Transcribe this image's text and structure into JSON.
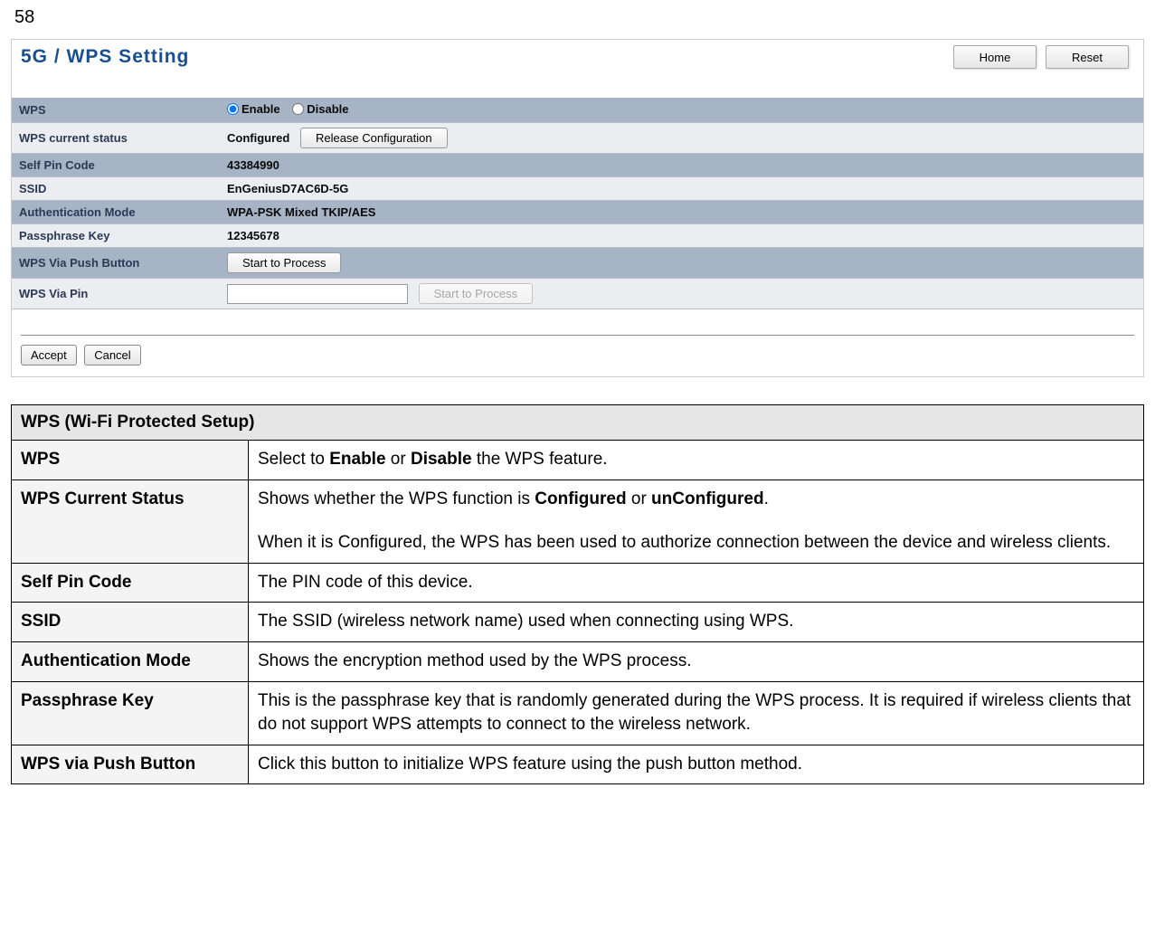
{
  "pageNumber": "58",
  "panel": {
    "title": "5G / WPS Setting",
    "buttons": {
      "home": "Home",
      "reset": "Reset"
    },
    "rows": {
      "wps_label": "WPS",
      "wps_enable": "Enable",
      "wps_disable": "Disable",
      "status_label": "WPS current status",
      "status_value": "Configured",
      "status_btn": "Release Configuration",
      "selfpin_label": "Self Pin Code",
      "selfpin_value": "43384990",
      "ssid_label": "SSID",
      "ssid_value": "EnGeniusD7AC6D-5G",
      "auth_label": "Authentication Mode",
      "auth_value": "WPA-PSK Mixed TKIP/AES",
      "pass_label": "Passphrase Key",
      "pass_value": "12345678",
      "push_label": "WPS Via Push Button",
      "push_btn": "Start to Process",
      "pin_label": "WPS Via Pin",
      "pin_btn": "Start to Process"
    },
    "footer": {
      "accept": "Accept",
      "cancel": "Cancel"
    }
  },
  "doc": {
    "sectionTitle": "WPS (Wi-Fi Protected Setup)",
    "wpsKey": "WPS",
    "wpsVal_a": "Select to ",
    "wpsVal_b": "Enable",
    "wpsVal_c": " or ",
    "wpsVal_d": "Disable",
    "wpsVal_e": " the WPS feature.",
    "statusKey": "WPS Current Status",
    "statusVal_a": "Shows whether the WPS function is ",
    "statusVal_b": "Configured",
    "statusVal_c": " or ",
    "statusVal_d": "unConfigured",
    "statusVal_e": ".",
    "statusVal_f": "When it is Configured, the WPS has been used to authorize connection between the device and wireless clients.",
    "selfpinKey": "Self Pin Code",
    "selfpinVal": "The PIN code of this device.",
    "ssidKey": "SSID",
    "ssidVal": "The SSID (wireless network name) used when connecting using WPS.",
    "authKey": "Authentication Mode",
    "authVal": "Shows the encryption method used by the WPS process.",
    "passKey": "Passphrase Key",
    "passVal": "This is the passphrase key that is randomly generated during the WPS process. It is required if wireless clients that do not support WPS attempts to connect to the wireless network.",
    "pushKey": "WPS via Push Button",
    "pushVal": "Click this button to initialize WPS feature using the push button method."
  }
}
